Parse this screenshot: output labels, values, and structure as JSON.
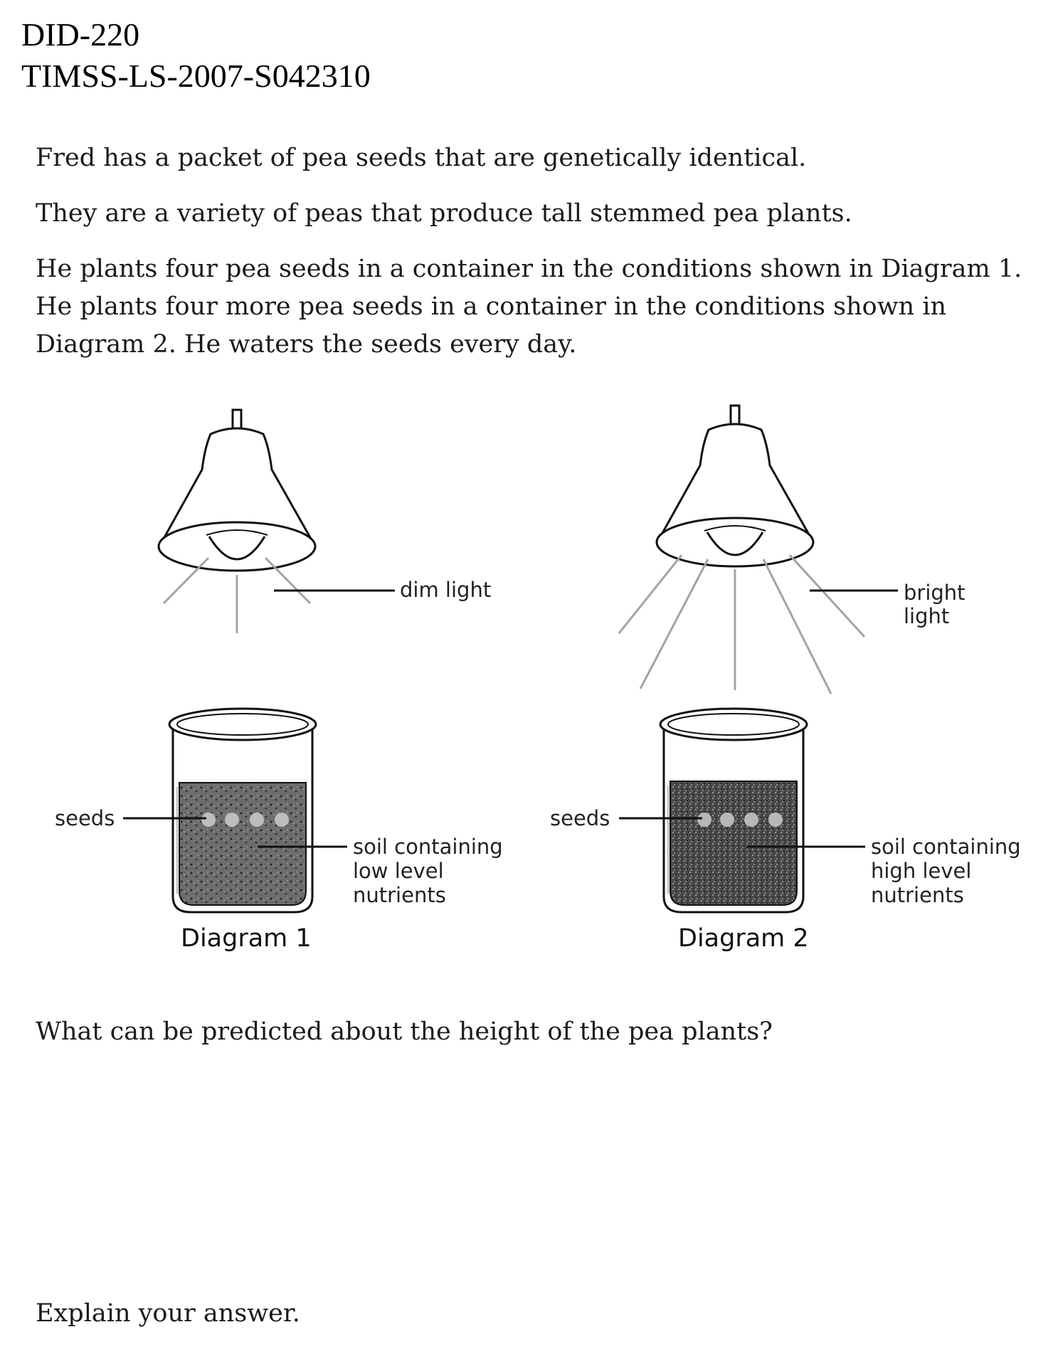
{
  "header": {
    "id_line": "DID-220",
    "code_line": "TIMSS-LS-2007-S042310"
  },
  "passage": {
    "line1": "Fred has a packet of pea seeds that are genetically identical.",
    "line2": "They are a variety of peas that produce tall stemmed pea plants.",
    "line3a": "He plants four pea seeds in a container in the conditions shown in Diagram 1.",
    "line3b": "He plants four more pea seeds in a container in the conditions shown in",
    "line3c": "Diagram 2.  He waters the seeds every day."
  },
  "diagram1": {
    "light_label": "dim light",
    "seeds_label": "seeds",
    "soil_label_1": "soil containing",
    "soil_label_2": "low level",
    "soil_label_3": "nutrients",
    "caption": "Diagram 1"
  },
  "diagram2": {
    "light_label_1": "bright",
    "light_label_2": "light",
    "seeds_label": "seeds",
    "soil_label_1": "soil containing",
    "soil_label_2": "high level",
    "soil_label_3": "nutrients",
    "caption": "Diagram 2"
  },
  "question": {
    "prompt": "What can be predicted about the height of the pea plants?",
    "explain": "Explain your answer."
  }
}
